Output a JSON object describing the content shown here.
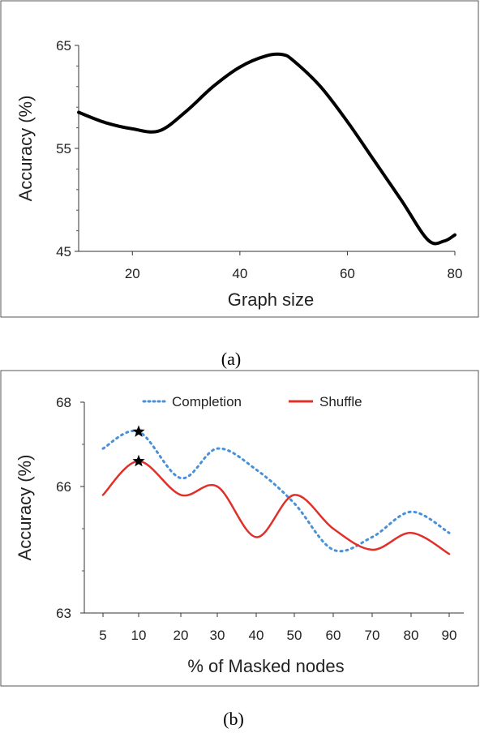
{
  "chart_data": [
    {
      "type": "line",
      "caption": "(a)",
      "xlabel": "Graph size",
      "ylabel": "Accuracy (%)",
      "xlim": [
        10,
        80
      ],
      "ylim": [
        45,
        65
      ],
      "xticks": [
        20,
        40,
        60,
        80
      ],
      "yticks": [
        45,
        55,
        65
      ],
      "grid": false,
      "series": [
        {
          "color": "#000000",
          "style": "solid",
          "x": [
            10,
            15,
            20,
            25,
            30,
            35,
            40,
            45,
            48,
            50,
            55,
            60,
            65,
            70,
            75,
            78,
            80
          ],
          "y": [
            58.5,
            57.5,
            56.9,
            56.7,
            58.6,
            61.0,
            62.9,
            64.0,
            64.1,
            63.5,
            61.0,
            57.6,
            53.8,
            50.0,
            46.1,
            46.0,
            46.6
          ]
        }
      ]
    },
    {
      "type": "line",
      "caption": "(b)",
      "xlabel": "% of Masked nodes",
      "ylabel": "Accuracy (%)",
      "categories": [
        "5",
        "10",
        "20",
        "30",
        "40",
        "50",
        "60",
        "70",
        "80",
        "90"
      ],
      "ylim": [
        63,
        68
      ],
      "yticks": [
        63,
        66,
        68
      ],
      "grid": false,
      "legend_position": "top",
      "series": [
        {
          "name": "Completion",
          "color": "#4a90d9",
          "style": "dotted",
          "values": [
            66.9,
            67.3,
            66.2,
            66.9,
            66.4,
            65.6,
            64.5,
            64.8,
            65.4,
            64.9
          ]
        },
        {
          "name": "Shuffle",
          "color": "#e0302a",
          "style": "solid",
          "values": [
            65.8,
            66.6,
            65.8,
            66.0,
            64.8,
            65.8,
            65.0,
            64.5,
            64.9,
            64.4
          ]
        }
      ],
      "markers": [
        {
          "symbol": "star",
          "category": "10",
          "value": 67.3
        },
        {
          "symbol": "star",
          "category": "10",
          "value": 66.6
        }
      ]
    }
  ]
}
